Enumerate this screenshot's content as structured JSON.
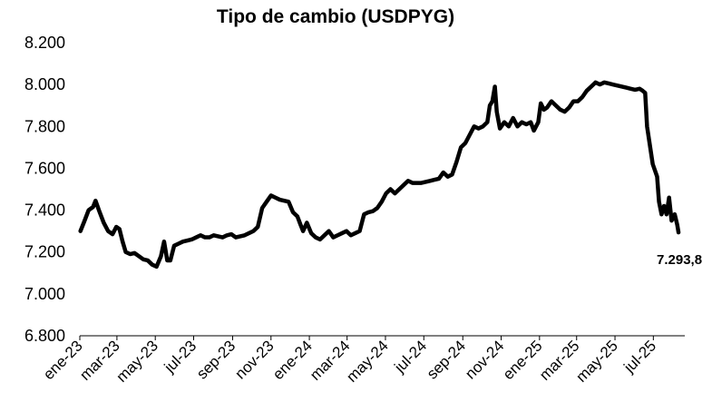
{
  "chart_data": {
    "type": "line",
    "title": "Tipo de cambio (USDPYG)",
    "xlabel": "",
    "ylabel": "",
    "ylim": [
      6800,
      8200
    ],
    "yticks": [
      6800,
      7000,
      7200,
      7400,
      7600,
      7800,
      8000,
      8200
    ],
    "ytick_labels": [
      "6.800",
      "7.000",
      "7.200",
      "7.400",
      "7.600",
      "7.800",
      "8.000",
      "8.200"
    ],
    "xlim": [
      "2023-01-01",
      "2025-08-20"
    ],
    "xticks": [
      "2023-01-01",
      "2023-03-01",
      "2023-05-01",
      "2023-07-01",
      "2023-09-01",
      "2023-11-01",
      "2024-01-01",
      "2024-03-01",
      "2024-05-01",
      "2024-07-01",
      "2024-09-01",
      "2024-11-01",
      "2025-01-01",
      "2025-03-01",
      "2025-05-01",
      "2025-07-01"
    ],
    "xtick_labels": [
      "ene-23",
      "mar-23",
      "may-23",
      "jul-23",
      "sep-23",
      "nov-23",
      "ene-24",
      "mar-24",
      "may-24",
      "jul-24",
      "sep-24",
      "nov-24",
      "ene-25",
      "mar-25",
      "may-25",
      "jul-25"
    ],
    "grid": false,
    "legend": "none",
    "series": [
      {
        "color": "#000000",
        "points": [
          [
            "2023-01-02",
            7300
          ],
          [
            "2023-01-08",
            7345
          ],
          [
            "2023-01-15",
            7400
          ],
          [
            "2023-01-22",
            7415
          ],
          [
            "2023-01-26",
            7445
          ],
          [
            "2023-02-01",
            7395
          ],
          [
            "2023-02-08",
            7340
          ],
          [
            "2023-02-15",
            7300
          ],
          [
            "2023-02-22",
            7285
          ],
          [
            "2023-02-28",
            7320
          ],
          [
            "2023-03-05",
            7310
          ],
          [
            "2023-03-10",
            7250
          ],
          [
            "2023-03-15",
            7200
          ],
          [
            "2023-03-22",
            7190
          ],
          [
            "2023-03-29",
            7195
          ],
          [
            "2023-04-05",
            7180
          ],
          [
            "2023-04-12",
            7165
          ],
          [
            "2023-04-19",
            7160
          ],
          [
            "2023-04-26",
            7140
          ],
          [
            "2023-05-03",
            7130
          ],
          [
            "2023-05-10",
            7180
          ],
          [
            "2023-05-15",
            7250
          ],
          [
            "2023-05-20",
            7160
          ],
          [
            "2023-05-25",
            7160
          ],
          [
            "2023-05-31",
            7230
          ],
          [
            "2023-06-07",
            7240
          ],
          [
            "2023-06-14",
            7250
          ],
          [
            "2023-06-21",
            7255
          ],
          [
            "2023-06-28",
            7260
          ],
          [
            "2023-07-05",
            7270
          ],
          [
            "2023-07-12",
            7280
          ],
          [
            "2023-07-19",
            7270
          ],
          [
            "2023-07-26",
            7270
          ],
          [
            "2023-08-02",
            7280
          ],
          [
            "2023-08-09",
            7275
          ],
          [
            "2023-08-16",
            7270
          ],
          [
            "2023-08-23",
            7280
          ],
          [
            "2023-08-30",
            7285
          ],
          [
            "2023-09-06",
            7270
          ],
          [
            "2023-09-13",
            7275
          ],
          [
            "2023-09-20",
            7280
          ],
          [
            "2023-09-27",
            7290
          ],
          [
            "2023-10-04",
            7300
          ],
          [
            "2023-10-11",
            7320
          ],
          [
            "2023-10-18",
            7410
          ],
          [
            "2023-10-25",
            7440
          ],
          [
            "2023-11-01",
            7470
          ],
          [
            "2023-11-08",
            7460
          ],
          [
            "2023-11-15",
            7450
          ],
          [
            "2023-11-22",
            7445
          ],
          [
            "2023-11-29",
            7440
          ],
          [
            "2023-12-06",
            7390
          ],
          [
            "2023-12-13",
            7370
          ],
          [
            "2023-12-18",
            7330
          ],
          [
            "2023-12-22",
            7300
          ],
          [
            "2023-12-28",
            7340
          ],
          [
            "2024-01-04",
            7290
          ],
          [
            "2024-01-11",
            7270
          ],
          [
            "2024-01-18",
            7260
          ],
          [
            "2024-01-25",
            7280
          ],
          [
            "2024-02-01",
            7300
          ],
          [
            "2024-02-08",
            7270
          ],
          [
            "2024-02-15",
            7280
          ],
          [
            "2024-02-22",
            7290
          ],
          [
            "2024-02-29",
            7300
          ],
          [
            "2024-03-07",
            7280
          ],
          [
            "2024-03-14",
            7290
          ],
          [
            "2024-03-21",
            7300
          ],
          [
            "2024-03-28",
            7380
          ],
          [
            "2024-04-04",
            7390
          ],
          [
            "2024-04-11",
            7395
          ],
          [
            "2024-04-18",
            7410
          ],
          [
            "2024-04-25",
            7440
          ],
          [
            "2024-05-02",
            7480
          ],
          [
            "2024-05-09",
            7500
          ],
          [
            "2024-05-16",
            7480
          ],
          [
            "2024-05-23",
            7500
          ],
          [
            "2024-05-30",
            7520
          ],
          [
            "2024-06-06",
            7540
          ],
          [
            "2024-06-13",
            7530
          ],
          [
            "2024-06-20",
            7530
          ],
          [
            "2024-06-27",
            7530
          ],
          [
            "2024-07-04",
            7535
          ],
          [
            "2024-07-11",
            7540
          ],
          [
            "2024-07-18",
            7545
          ],
          [
            "2024-07-25",
            7550
          ],
          [
            "2024-08-01",
            7580
          ],
          [
            "2024-08-08",
            7560
          ],
          [
            "2024-08-15",
            7570
          ],
          [
            "2024-08-22",
            7630
          ],
          [
            "2024-08-29",
            7700
          ],
          [
            "2024-09-05",
            7720
          ],
          [
            "2024-09-12",
            7760
          ],
          [
            "2024-09-19",
            7800
          ],
          [
            "2024-09-26",
            7790
          ],
          [
            "2024-10-03",
            7800
          ],
          [
            "2024-10-10",
            7820
          ],
          [
            "2024-10-14",
            7900
          ],
          [
            "2024-10-18",
            7920
          ],
          [
            "2024-10-22",
            7990
          ],
          [
            "2024-10-25",
            7870
          ],
          [
            "2024-10-30",
            7790
          ],
          [
            "2024-11-06",
            7820
          ],
          [
            "2024-11-13",
            7800
          ],
          [
            "2024-11-20",
            7840
          ],
          [
            "2024-11-27",
            7800
          ],
          [
            "2024-12-04",
            7820
          ],
          [
            "2024-12-11",
            7810
          ],
          [
            "2024-12-18",
            7820
          ],
          [
            "2024-12-23",
            7780
          ],
          [
            "2024-12-30",
            7820
          ],
          [
            "2025-01-03",
            7910
          ],
          [
            "2025-01-08",
            7880
          ],
          [
            "2025-01-13",
            7890
          ],
          [
            "2025-01-20",
            7920
          ],
          [
            "2025-01-27",
            7900
          ],
          [
            "2025-02-03",
            7880
          ],
          [
            "2025-02-10",
            7870
          ],
          [
            "2025-02-17",
            7890
          ],
          [
            "2025-02-24",
            7920
          ],
          [
            "2025-03-03",
            7920
          ],
          [
            "2025-03-10",
            7940
          ],
          [
            "2025-03-17",
            7970
          ],
          [
            "2025-03-24",
            7990
          ],
          [
            "2025-03-31",
            8010
          ],
          [
            "2025-04-07",
            8000
          ],
          [
            "2025-04-14",
            8010
          ],
          [
            "2025-04-21",
            8005
          ],
          [
            "2025-04-28",
            8000
          ],
          [
            "2025-05-05",
            7995
          ],
          [
            "2025-05-12",
            7990
          ],
          [
            "2025-05-19",
            7985
          ],
          [
            "2025-05-26",
            7980
          ],
          [
            "2025-06-02",
            7975
          ],
          [
            "2025-06-09",
            7980
          ],
          [
            "2025-06-14",
            7970
          ],
          [
            "2025-06-18",
            7960
          ],
          [
            "2025-06-21",
            7800
          ],
          [
            "2025-06-25",
            7720
          ],
          [
            "2025-06-30",
            7620
          ],
          [
            "2025-07-07",
            7560
          ],
          [
            "2025-07-10",
            7440
          ],
          [
            "2025-07-14",
            7380
          ],
          [
            "2025-07-18",
            7420
          ],
          [
            "2025-07-22",
            7380
          ],
          [
            "2025-07-26",
            7460
          ],
          [
            "2025-07-30",
            7350
          ],
          [
            "2025-08-04",
            7380
          ],
          [
            "2025-08-08",
            7330
          ],
          [
            "2025-08-10",
            7293.8
          ]
        ]
      }
    ],
    "annotations": [
      {
        "text": "7.293,8",
        "x": "2025-08-10",
        "y": 7293.8
      }
    ]
  }
}
